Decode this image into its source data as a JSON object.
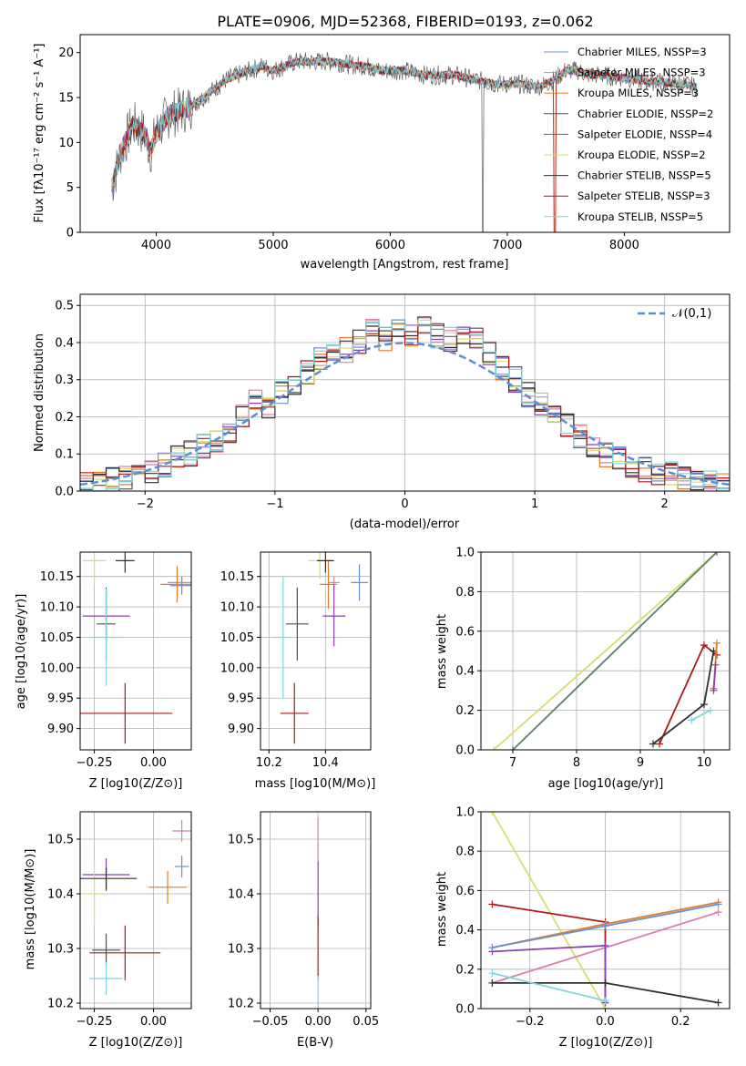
{
  "title": "PLATE=0906, MJD=52368, FIBERID=0193, z=0.062",
  "colors": [
    "#6b8fd6",
    "#d87fb2",
    "#e07c2a",
    "#4d4d4d",
    "#8a3fb0",
    "#d9dd6e",
    "#303030",
    "#b01818",
    "#7fd6e0"
  ],
  "panels": {
    "spectrum": {
      "xlabel": "wavelength [Angstrom, rest frame]",
      "ylabel": "Flux [f",
      "ylabel_full": "Flux [fλ10⁻¹⁷ erg cm⁻² s⁻¹ A⁻¹]",
      "xticks": [
        "4000",
        "5000",
        "6000",
        "7000",
        "8000"
      ],
      "yticks": [
        "0",
        "5",
        "10",
        "15",
        "20"
      ],
      "legend": [
        "Chabrier MILES, NSSP=3",
        "Salpeter MILES, NSSP=3",
        "Kroupa MILES, NSSP=3",
        "Chabrier ELODIE, NSSP=2",
        "Salpeter ELODIE, NSSP=4",
        "Kroupa ELODIE, NSSP=2",
        "Chabrier STELIB, NSSP=5",
        "Salpeter STELIB, NSSP=3",
        "Kroupa STELIB, NSSP=5"
      ]
    },
    "residuals": {
      "xlabel": "(data-model)/error",
      "ylabel": "Normed distribution",
      "xticks": [
        "−2",
        "−1",
        "0",
        "1",
        "2"
      ],
      "yticks": [
        "0.0",
        "0.1",
        "0.2",
        "0.3",
        "0.4",
        "0.5"
      ],
      "legend": "𝒩(0,1)"
    },
    "age_Z": {
      "xlabel": "Z [log10(Z/Z⊙)]",
      "ylabel": "age  [log10(age/yr)]",
      "xticks": [
        "−0.25",
        "0.00"
      ],
      "yticks": [
        "9.90",
        "9.95",
        "10.00",
        "10.05",
        "10.10",
        "10.15"
      ]
    },
    "age_mass": {
      "xlabel": "mass [log10(M/M⊙)]",
      "xticks": [
        "10.2",
        "10.4"
      ],
      "yticks": [
        "9.90",
        "9.95",
        "10.00",
        "10.05",
        "10.10",
        "10.15"
      ]
    },
    "mw_age": {
      "xlabel": "age  [log10(age/yr)]",
      "ylabel": "mass weight",
      "xticks": [
        "7",
        "8",
        "9",
        "10"
      ],
      "yticks": [
        "0.0",
        "0.2",
        "0.4",
        "0.6",
        "0.8",
        "1.0"
      ]
    },
    "mass_Z": {
      "xlabel": "Z [log10(Z/Z⊙)]",
      "ylabel": "mass [log10(M/M⊙)]",
      "xticks": [
        "−0.25",
        "0.00"
      ],
      "yticks": [
        "10.2",
        "10.3",
        "10.4",
        "10.5"
      ]
    },
    "mass_ebv": {
      "xlabel": "E(B-V)",
      "xticks": [
        "−0.05",
        "0.00",
        "0.05"
      ],
      "yticks": [
        "10.2",
        "10.3",
        "10.4",
        "10.5"
      ]
    },
    "mw_Z": {
      "xlabel": "Z [log10(Z/Z⊙)]",
      "ylabel": "mass weight",
      "xticks": [
        "−0.2",
        "0.0",
        "0.2"
      ],
      "yticks": [
        "0.0",
        "0.2",
        "0.4",
        "0.6",
        "0.8",
        "1.0"
      ]
    }
  },
  "chart_data": [
    {
      "type": "line",
      "title": "PLATE=0906, MJD=52368, FIBERID=0193, z=0.062",
      "xlabel": "wavelength [Angstrom, rest frame]",
      "ylabel": "Flux [fλ10⁻¹⁷ erg cm⁻² s⁻¹ A⁻¹]",
      "xlim": [
        3350,
        8900
      ],
      "ylim": [
        0,
        22
      ],
      "x": [
        3620,
        3700,
        3800,
        3900,
        3950,
        4000,
        4100,
        4200,
        4300,
        4400,
        4500,
        4600,
        4700,
        4800,
        4900,
        5000,
        5100,
        5200,
        5300,
        5400,
        5500,
        5600,
        5700,
        5800,
        5900,
        6000,
        6100,
        6200,
        6300,
        6400,
        6500,
        6600,
        6700,
        6800,
        6900,
        7000,
        7100,
        7200,
        7300,
        7400,
        7500,
        7600,
        7700,
        7800,
        7900,
        8000,
        8100,
        8200,
        8300,
        8400,
        8500,
        8600
      ],
      "y": [
        5,
        9,
        12,
        11,
        9,
        11,
        13,
        13.5,
        14,
        15,
        16,
        17,
        17.5,
        18,
        18.5,
        18,
        18.5,
        19,
        19,
        19,
        19,
        18.8,
        18.6,
        18.5,
        18,
        18,
        18,
        17.8,
        17.5,
        17.5,
        17.5,
        17.4,
        17,
        16.8,
        16.5,
        16.5,
        16.5,
        16.3,
        16.3,
        17,
        18,
        18,
        17.5,
        17.5,
        17.3,
        17.2,
        17,
        16.8,
        16.8,
        16.6,
        16.5,
        16.2
      ],
      "series": [
        "Chabrier MILES, NSSP=3",
        "Salpeter MILES, NSSP=3",
        "Kroupa MILES, NSSP=3",
        "Chabrier ELODIE, NSSP=2",
        "Salpeter ELODIE, NSSP=4",
        "Kroupa ELODIE, NSSP=2",
        "Chabrier STELIB, NSSP=5",
        "Salpeter STELIB, NSSP=3",
        "Kroupa STELIB, NSSP=5"
      ]
    },
    {
      "type": "line",
      "xlabel": "(data-model)/error",
      "ylabel": "Normed distribution",
      "xlim": [
        -2.5,
        2.5
      ],
      "ylim": [
        0,
        0.53
      ],
      "bin_edges": [
        -2.5,
        -2.4,
        -2.3,
        -2.2,
        -2.1,
        -2.0,
        -1.9,
        -1.8,
        -1.7,
        -1.6,
        -1.5,
        -1.4,
        -1.3,
        -1.2,
        -1.1,
        -1.0,
        -0.9,
        -0.8,
        -0.7,
        -0.6,
        -0.5,
        -0.4,
        -0.3,
        -0.2,
        -0.1,
        0.0,
        0.1,
        0.2,
        0.3,
        0.4,
        0.5,
        0.6,
        0.7,
        0.8,
        0.9,
        1.0,
        1.1,
        1.2,
        1.3,
        1.4,
        1.5,
        1.6,
        1.7,
        1.8,
        1.9,
        2.0,
        2.1,
        2.2,
        2.3,
        2.4,
        2.5
      ],
      "hist_mean": [
        0.015,
        0.02,
        0.03,
        0.035,
        0.04,
        0.05,
        0.07,
        0.09,
        0.1,
        0.12,
        0.13,
        0.15,
        0.2,
        0.24,
        0.23,
        0.27,
        0.28,
        0.32,
        0.36,
        0.38,
        0.38,
        0.4,
        0.43,
        0.41,
        0.44,
        0.42,
        0.44,
        0.42,
        0.41,
        0.42,
        0.41,
        0.37,
        0.33,
        0.3,
        0.26,
        0.24,
        0.22,
        0.18,
        0.15,
        0.12,
        0.1,
        0.09,
        0.07,
        0.06,
        0.05,
        0.045,
        0.04,
        0.035,
        0.025,
        0.02
      ],
      "gauss_label": "𝒩(0,1)"
    },
    {
      "type": "scatter",
      "xlabel": "Z [log10(Z/Z⊙)]",
      "ylabel": "age  [log10(age/yr)]",
      "xlim": [
        -0.31,
        0.16
      ],
      "ylim": [
        9.865,
        10.19
      ],
      "points": [
        {
          "x": 0.12,
          "y": 10.14,
          "xerr": 0.06,
          "yerr": 0.01
        },
        {
          "x": 0.12,
          "y": 10.135,
          "xerr": 0.05,
          "yerr": 0.015
        },
        {
          "x": 0.1,
          "y": 10.137,
          "xerr": 0.07,
          "yerr": 0.03
        },
        {
          "x": -0.2,
          "y": 10.072,
          "xerr": 0.04,
          "yerr": 0.06
        },
        {
          "x": -0.2,
          "y": 10.085,
          "xerr": 0.1,
          "yerr": 0.04
        },
        {
          "x": -0.25,
          "y": 10.176,
          "xerr": 0.05,
          "yerr": 0.04
        },
        {
          "x": -0.12,
          "y": 10.176,
          "xerr": 0.04,
          "yerr": 0.02
        },
        {
          "x": -0.12,
          "y": 9.925,
          "xerr": 0.2,
          "yerr": 0.05
        },
        {
          "x": -0.2,
          "y": 10.05,
          "xerr": 0.07,
          "yerr": 0.08
        }
      ]
    },
    {
      "type": "scatter",
      "xlabel": "mass [log10(M/M⊙)]",
      "xlim": [
        10.17,
        10.56
      ],
      "ylim": [
        9.865,
        10.19
      ],
      "points": [
        {
          "x": 10.43,
          "y": 10.14,
          "xerr": 0.02,
          "yerr": 0.01
        },
        {
          "x": 10.52,
          "y": 10.14,
          "xerr": 0.03,
          "yerr": 0.03
        },
        {
          "x": 10.41,
          "y": 10.137,
          "xerr": 0.03,
          "yerr": 0.04
        },
        {
          "x": 10.3,
          "y": 10.072,
          "xerr": 0.04,
          "yerr": 0.06
        },
        {
          "x": 10.43,
          "y": 10.085,
          "xerr": 0.04,
          "yerr": 0.05
        },
        {
          "x": 10.38,
          "y": 10.176,
          "xerr": 0.04,
          "yerr": 0.03
        },
        {
          "x": 10.4,
          "y": 10.176,
          "xerr": 0.03,
          "yerr": 0.02
        },
        {
          "x": 10.29,
          "y": 9.925,
          "xerr": 0.05,
          "yerr": 0.05
        },
        {
          "x": 10.25,
          "y": 10.05,
          "xerr": 0.03,
          "yerr": 0.1
        }
      ]
    },
    {
      "type": "line",
      "xlabel": "age  [log10(age/yr)]",
      "ylabel": "mass weight",
      "xlim": [
        6.5,
        10.4
      ],
      "ylim": [
        0,
        1
      ],
      "series": [
        {
          "name": "Kroupa ELODIE",
          "x": [
            6.7,
            10.2
          ],
          "y": [
            0,
            1
          ]
        },
        {
          "name": "Chabrier ELODIE",
          "x": [
            7.0,
            10.2
          ],
          "y": [
            0,
            1
          ]
        },
        {
          "name": "Salpeter STELIB",
          "x": [
            9.3,
            10.0,
            10.2
          ],
          "y": [
            0.03,
            0.53,
            0.48
          ]
        },
        {
          "name": "Chabrier STELIB",
          "x": [
            9.2,
            10.0,
            10.15
          ],
          "y": [
            0.03,
            0.23,
            0.5
          ]
        },
        {
          "name": "Kroupa MILES",
          "x": [
            10.15,
            10.2
          ],
          "y": [
            0.31,
            0.54
          ]
        },
        {
          "name": "Salpeter ELODIE",
          "x": [
            10.15,
            10.18
          ],
          "y": [
            0.3,
            0.43
          ]
        },
        {
          "name": "Kroupa STELIB",
          "x": [
            9.8,
            10.1
          ],
          "y": [
            0.15,
            0.2
          ]
        }
      ]
    },
    {
      "type": "scatter",
      "xlabel": "Z [log10(Z/Z⊙)]",
      "ylabel": "mass [log10(M/M⊙)]",
      "xlim": [
        -0.31,
        0.16
      ],
      "ylim": [
        10.19,
        10.55
      ],
      "points": [
        {
          "x": 0.12,
          "y": 10.515,
          "xerr": 0.04,
          "yerr": 0.02
        },
        {
          "x": 0.12,
          "y": 10.45,
          "xerr": 0.03,
          "yerr": 0.02
        },
        {
          "x": 0.06,
          "y": 10.412,
          "xerr": 0.08,
          "yerr": 0.03
        },
        {
          "x": -0.2,
          "y": 10.297,
          "xerr": 0.06,
          "yerr": 0.03
        },
        {
          "x": -0.2,
          "y": 10.435,
          "xerr": 0.1,
          "yerr": 0.03
        },
        {
          "x": -0.25,
          "y": 10.4,
          "xerr": 0.05,
          "yerr": 0.06
        },
        {
          "x": -0.2,
          "y": 10.428,
          "xerr": 0.13,
          "yerr": 0.02
        },
        {
          "x": -0.12,
          "y": 10.292,
          "xerr": 0.15,
          "yerr": 0.05
        },
        {
          "x": -0.2,
          "y": 10.245,
          "xerr": 0.07,
          "yerr": 0.03
        }
      ]
    },
    {
      "type": "scatter",
      "xlabel": "E(B-V)",
      "xlim": [
        -0.06,
        0.055
      ],
      "ylim": [
        10.19,
        10.55
      ],
      "points": [
        {
          "x": 0,
          "y": 10.5,
          "yerr": 0.04
        },
        {
          "x": 0,
          "y": 10.4,
          "yerr": 0.06
        },
        {
          "x": 0,
          "y": 10.3,
          "yerr": 0.06
        },
        {
          "x": 0,
          "y": 10.22,
          "yerr": 0.03
        }
      ]
    },
    {
      "type": "line",
      "xlabel": "Z [log10(Z/Z⊙)]",
      "ylabel": "mass weight",
      "xlim": [
        -0.33,
        0.33
      ],
      "ylim": [
        0,
        1
      ],
      "series": [
        {
          "name": "Kroupa ELODIE",
          "x": [
            -0.3,
            0.0
          ],
          "y": [
            1.0,
            0.0
          ]
        },
        {
          "name": "Salpeter STELIB",
          "x": [
            -0.3,
            0.0,
            0.0
          ],
          "y": [
            0.53,
            0.44,
            0.03
          ]
        },
        {
          "name": "Kroupa MILES",
          "x": [
            -0.3,
            0.0,
            0.3
          ],
          "y": [
            0.31,
            0.43,
            0.54
          ]
        },
        {
          "name": "Salpeter MILES",
          "x": [
            -0.3,
            0.3
          ],
          "y": [
            0.13,
            0.49
          ]
        },
        {
          "name": "Salpeter ELODIE",
          "x": [
            -0.3,
            0.0,
            0.0
          ],
          "y": [
            0.29,
            0.32,
            0.03
          ]
        },
        {
          "name": "Chabrier MILES",
          "x": [
            -0.3,
            0.0,
            0.3
          ],
          "y": [
            0.31,
            0.42,
            0.53
          ]
        },
        {
          "name": "Chabrier STELIB",
          "x": [
            -0.3,
            0.0,
            0.3
          ],
          "y": [
            0.13,
            0.13,
            0.03
          ]
        },
        {
          "name": "Kroupa STELIB",
          "x": [
            -0.3,
            0.0
          ],
          "y": [
            0.18,
            0.04
          ]
        }
      ]
    }
  ]
}
